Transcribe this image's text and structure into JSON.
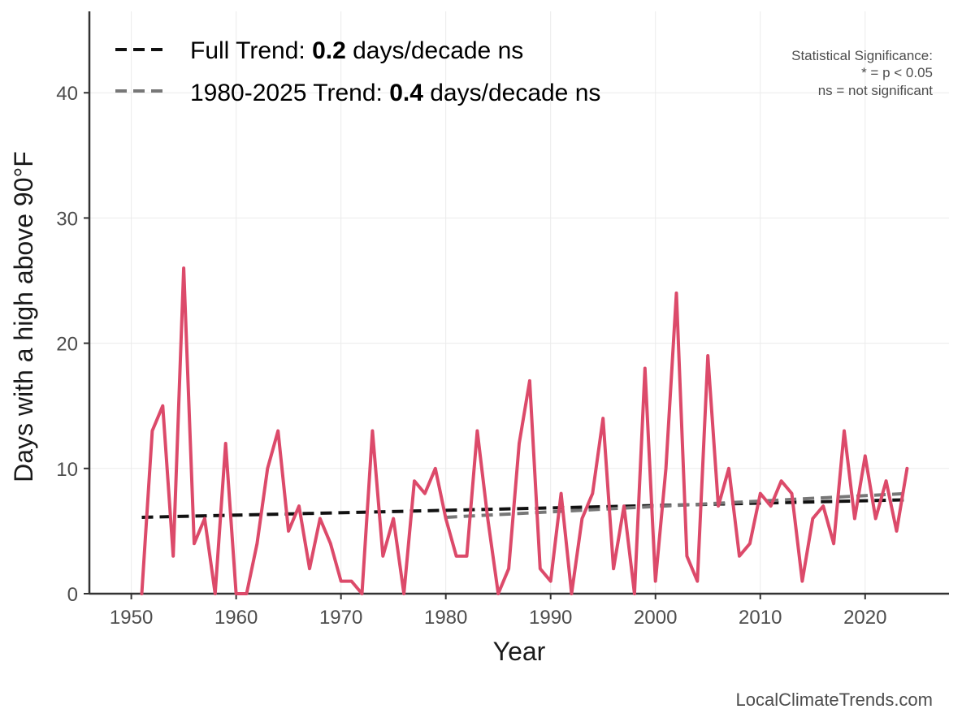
{
  "chart_data": {
    "type": "line",
    "xlabel": "Year",
    "ylabel": "Days with a high above 90°F",
    "xlim": [
      1946,
      2028
    ],
    "ylim": [
      0,
      46.5
    ],
    "x_ticks": [
      1950,
      1960,
      1970,
      1980,
      1990,
      2000,
      2010,
      2020
    ],
    "y_ticks": [
      0,
      10,
      20,
      30,
      40
    ],
    "grid": true,
    "legend_position": "top-left",
    "series": [
      {
        "color": "#dc4a6a",
        "x": [
          1951,
          1952,
          1953,
          1954,
          1955,
          1956,
          1957,
          1958,
          1959,
          1960,
          1961,
          1962,
          1963,
          1964,
          1965,
          1966,
          1967,
          1968,
          1969,
          1970,
          1971,
          1972,
          1973,
          1974,
          1975,
          1976,
          1977,
          1978,
          1979,
          1980,
          1981,
          1982,
          1983,
          1984,
          1985,
          1986,
          1987,
          1988,
          1989,
          1990,
          1991,
          1992,
          1993,
          1994,
          1995,
          1996,
          1997,
          1998,
          1999,
          2000,
          2001,
          2002,
          2003,
          2004,
          2005,
          2006,
          2007,
          2008,
          2009,
          2010,
          2011,
          2012,
          2013,
          2014,
          2015,
          2016,
          2017,
          2018,
          2019,
          2020,
          2021,
          2022,
          2023,
          2024
        ],
        "values": [
          0,
          13,
          15,
          3,
          26,
          4,
          6,
          0,
          12,
          0,
          0,
          4,
          10,
          13,
          5,
          7,
          2,
          6,
          4,
          1,
          1,
          0,
          13,
          3,
          6,
          0,
          9,
          8,
          10,
          6,
          3,
          3,
          13,
          6,
          0,
          2,
          12,
          17,
          2,
          1,
          8,
          0,
          6,
          8,
          14,
          2,
          7,
          0,
          18,
          1,
          10,
          24,
          3,
          1,
          19,
          7,
          10,
          3,
          4,
          8,
          7,
          9,
          8,
          1,
          6,
          7,
          4,
          13,
          6,
          11,
          6,
          9,
          5,
          10
        ]
      }
    ],
    "trends": [
      {
        "label_prefix": "Full Trend: ",
        "rate": "0.2",
        "label_suffix": " days/decade ns",
        "color": "#111111",
        "x_start": 1951,
        "y_start": 6.1,
        "x_end": 2024,
        "y_end": 7.5
      },
      {
        "label_prefix": "1980-2025 Trend: ",
        "rate": "0.4",
        "label_suffix": " days/decade ns",
        "color": "#777777",
        "x_start": 1980,
        "y_start": 6.1,
        "x_end": 2024,
        "y_end": 8.0
      }
    ],
    "significance_note": [
      "Statistical Significance:",
      "* = p < 0.05",
      "ns = not significant"
    ],
    "caption": "LocalClimateTrends.com"
  }
}
